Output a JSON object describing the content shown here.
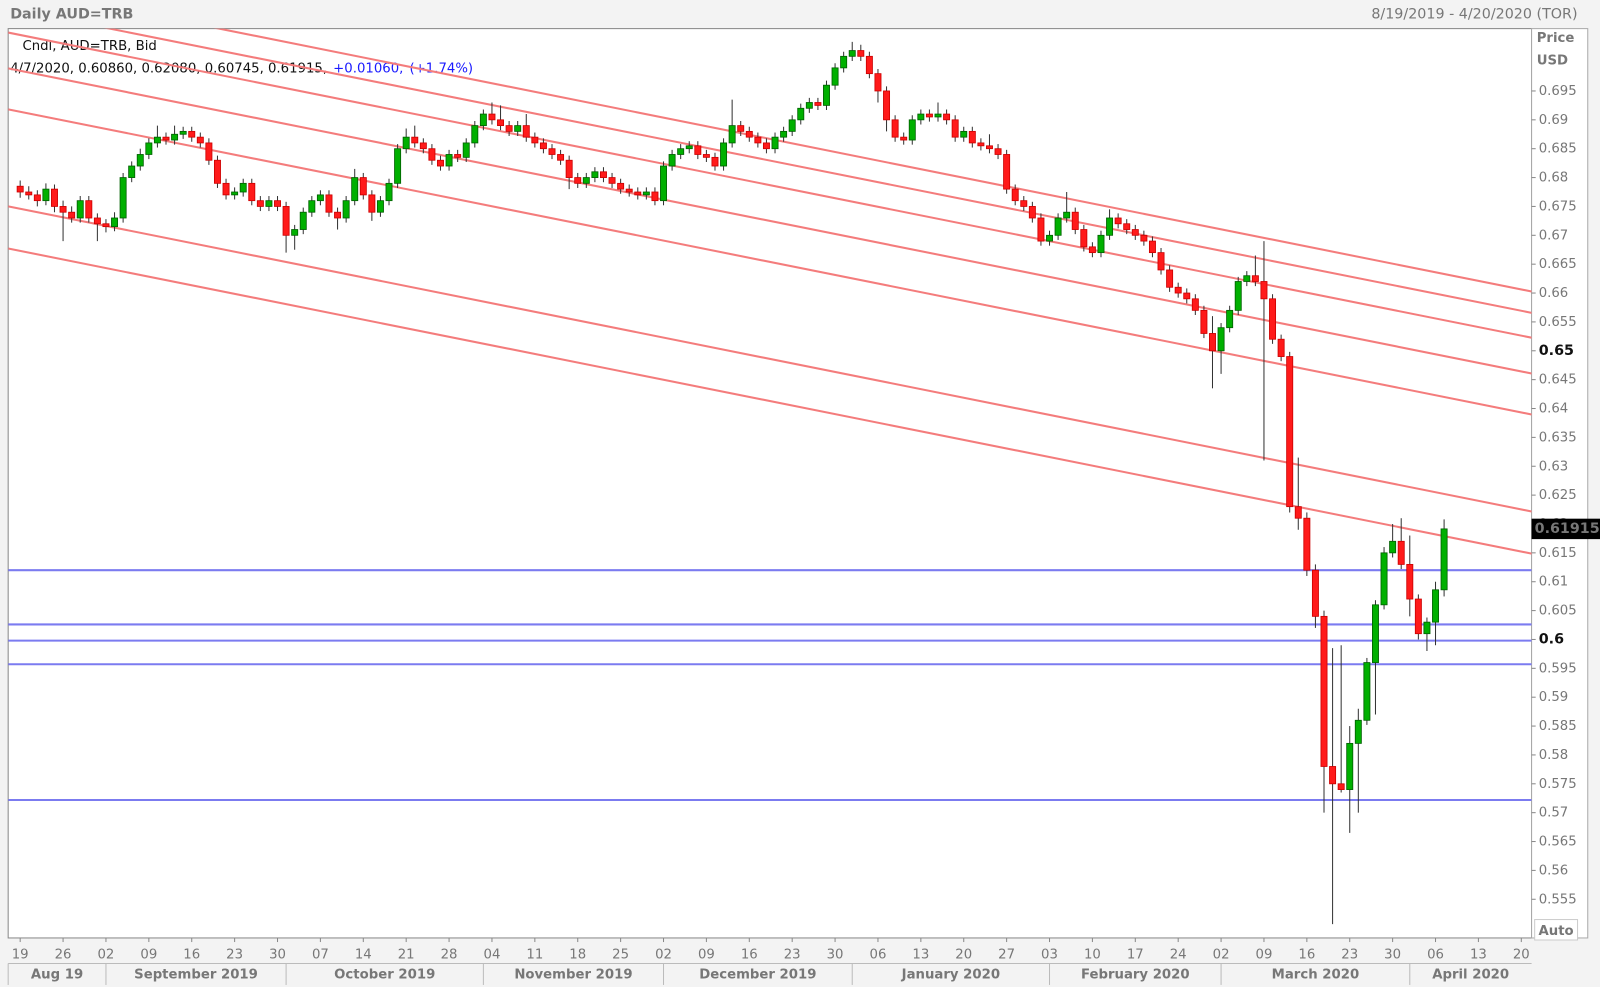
{
  "chart_data": {
    "type": "candlestick",
    "title": "Daily AUD=TRB",
    "date_range": "8/19/2019 - 4/20/2020 (TOR)",
    "legend": {
      "name": "Cndl, AUD=TRB, Bid",
      "ohlc_text": "4/7/2020, 0.60860, 0.62080, 0.60745, 0.61915,",
      "change": "+0.01060,",
      "change_pct": "(+1.74%)"
    },
    "y_axis_label": [
      "Price",
      "USD"
    ],
    "auto_label": "Auto",
    "last_label": "0.61915",
    "up_color": "#00b000",
    "down_color": "#ff1a1a",
    "channel_color": "#f47c7c",
    "level_color": "#7b7bf0",
    "xlim": [
      -1.4,
      176.2
    ],
    "ylim": [
      0.5483,
      0.7058
    ],
    "yticks": [
      0.555,
      0.56,
      0.565,
      0.57,
      0.575,
      0.58,
      0.585,
      0.59,
      0.595,
      0.6,
      0.605,
      0.61,
      0.615,
      0.62,
      0.625,
      0.63,
      0.635,
      0.64,
      0.645,
      0.65,
      0.655,
      0.66,
      0.665,
      0.67,
      0.675,
      0.68,
      0.685,
      0.69,
      0.695
    ],
    "major_yticks": [
      0.6,
      0.65
    ],
    "xticks": [
      {
        "value": 0,
        "label": "19"
      },
      {
        "value": 5,
        "label": "26"
      },
      {
        "value": 10,
        "label": "02"
      },
      {
        "value": 15,
        "label": "09"
      },
      {
        "value": 20,
        "label": "16"
      },
      {
        "value": 25,
        "label": "23"
      },
      {
        "value": 30,
        "label": "30"
      },
      {
        "value": 35,
        "label": "07"
      },
      {
        "value": 40,
        "label": "14"
      },
      {
        "value": 45,
        "label": "21"
      },
      {
        "value": 50,
        "label": "28"
      },
      {
        "value": 55,
        "label": "04"
      },
      {
        "value": 60,
        "label": "11"
      },
      {
        "value": 65,
        "label": "18"
      },
      {
        "value": 70,
        "label": "25"
      },
      {
        "value": 75,
        "label": "02"
      },
      {
        "value": 80,
        "label": "09"
      },
      {
        "value": 85,
        "label": "16"
      },
      {
        "value": 90,
        "label": "23"
      },
      {
        "value": 95,
        "label": "30"
      },
      {
        "value": 100,
        "label": "06"
      },
      {
        "value": 105,
        "label": "13"
      },
      {
        "value": 110,
        "label": "20"
      },
      {
        "value": 115,
        "label": "27"
      },
      {
        "value": 120,
        "label": "03"
      },
      {
        "value": 125,
        "label": "10"
      },
      {
        "value": 130,
        "label": "17"
      },
      {
        "value": 135,
        "label": "24"
      },
      {
        "value": 140,
        "label": "02"
      },
      {
        "value": 145,
        "label": "09"
      },
      {
        "value": 150,
        "label": "16"
      },
      {
        "value": 155,
        "label": "23"
      },
      {
        "value": 160,
        "label": "30"
      },
      {
        "value": 165,
        "label": "06"
      },
      {
        "value": 170,
        "label": "13"
      },
      {
        "value": 175,
        "label": "20"
      }
    ],
    "months": [
      {
        "label": "Aug 19",
        "start": -1.4
      },
      {
        "label": "September 2019",
        "start": 10
      },
      {
        "label": "October 2019",
        "start": 31
      },
      {
        "label": "November 2019",
        "start": 54
      },
      {
        "label": "December 2019",
        "start": 75
      },
      {
        "label": "January 2020",
        "start": 97
      },
      {
        "label": "February 2020",
        "start": 120
      },
      {
        "label": "March 2020",
        "start": 140
      },
      {
        "label": "April 2020",
        "start": 162
      }
    ],
    "channel_lines": [
      {
        "x": [
          0,
          165
        ],
        "values": [
          0.6673,
          0.6182
        ]
      },
      {
        "x": [
          0,
          165
        ],
        "values": [
          0.6746,
          0.6255
        ]
      },
      {
        "x": [
          0,
          165
        ],
        "values": [
          0.6914,
          0.6423
        ]
      },
      {
        "x": [
          0,
          165
        ],
        "values": [
          0.6985,
          0.6494
        ]
      },
      {
        "x": [
          0,
          165
        ],
        "values": [
          0.7047,
          0.6556
        ]
      },
      {
        "x": [
          0,
          165
        ],
        "values": [
          0.7089,
          0.6599
        ]
      },
      {
        "x": [
          0,
          165
        ],
        "values": [
          0.7127,
          0.6636
        ]
      }
    ],
    "levels": [
      0.612,
      0.6026,
      0.5998,
      0.5957,
      0.5722
    ],
    "ohlc": [
      [
        0.6785,
        0.6795,
        0.6765,
        0.6775
      ],
      [
        0.6775,
        0.6785,
        0.6762,
        0.677
      ],
      [
        0.677,
        0.6778,
        0.675,
        0.676
      ],
      [
        0.676,
        0.679,
        0.6752,
        0.678
      ],
      [
        0.678,
        0.6788,
        0.674,
        0.675
      ],
      [
        0.675,
        0.676,
        0.669,
        0.674
      ],
      [
        0.674,
        0.675,
        0.6722,
        0.673
      ],
      [
        0.673,
        0.6768,
        0.6722,
        0.676
      ],
      [
        0.676,
        0.6768,
        0.6722,
        0.673
      ],
      [
        0.673,
        0.6738,
        0.669,
        0.672
      ],
      [
        0.672,
        0.6728,
        0.6705,
        0.6715
      ],
      [
        0.6715,
        0.674,
        0.6707,
        0.673
      ],
      [
        0.673,
        0.6808,
        0.6722,
        0.68
      ],
      [
        0.68,
        0.6828,
        0.6792,
        0.682
      ],
      [
        0.682,
        0.685,
        0.6812,
        0.684
      ],
      [
        0.684,
        0.6868,
        0.6832,
        0.686
      ],
      [
        0.686,
        0.689,
        0.6852,
        0.687
      ],
      [
        0.687,
        0.6878,
        0.6857,
        0.6865
      ],
      [
        0.6865,
        0.689,
        0.6857,
        0.6875
      ],
      [
        0.6875,
        0.6888,
        0.6867,
        0.688
      ],
      [
        0.688,
        0.6888,
        0.6862,
        0.687
      ],
      [
        0.687,
        0.6878,
        0.6852,
        0.686
      ],
      [
        0.686,
        0.6868,
        0.6822,
        0.683
      ],
      [
        0.683,
        0.6838,
        0.6782,
        0.679
      ],
      [
        0.679,
        0.6798,
        0.6762,
        0.677
      ],
      [
        0.677,
        0.6783,
        0.6762,
        0.6775
      ],
      [
        0.6775,
        0.6798,
        0.6767,
        0.679
      ],
      [
        0.679,
        0.6798,
        0.6752,
        0.676
      ],
      [
        0.676,
        0.6768,
        0.6742,
        0.675
      ],
      [
        0.675,
        0.6768,
        0.6742,
        0.676
      ],
      [
        0.676,
        0.6768,
        0.6742,
        0.675
      ],
      [
        0.675,
        0.6758,
        0.667,
        0.67
      ],
      [
        0.67,
        0.6718,
        0.6675,
        0.671
      ],
      [
        0.671,
        0.6748,
        0.6702,
        0.674
      ],
      [
        0.674,
        0.6768,
        0.6732,
        0.676
      ],
      [
        0.676,
        0.6778,
        0.6752,
        0.677
      ],
      [
        0.677,
        0.6778,
        0.6732,
        0.674
      ],
      [
        0.674,
        0.6748,
        0.671,
        0.673
      ],
      [
        0.673,
        0.6768,
        0.6722,
        0.676
      ],
      [
        0.676,
        0.6815,
        0.6752,
        0.68
      ],
      [
        0.68,
        0.6808,
        0.6762,
        0.677
      ],
      [
        0.677,
        0.6778,
        0.6725,
        0.674
      ],
      [
        0.674,
        0.6768,
        0.6732,
        0.676
      ],
      [
        0.676,
        0.6798,
        0.6752,
        0.679
      ],
      [
        0.679,
        0.6858,
        0.6782,
        0.685
      ],
      [
        0.685,
        0.6885,
        0.6842,
        0.687
      ],
      [
        0.687,
        0.689,
        0.6852,
        0.686
      ],
      [
        0.686,
        0.6868,
        0.6842,
        0.685
      ],
      [
        0.685,
        0.6858,
        0.6822,
        0.683
      ],
      [
        0.683,
        0.6838,
        0.6812,
        0.682
      ],
      [
        0.682,
        0.6848,
        0.6812,
        0.684
      ],
      [
        0.684,
        0.6848,
        0.6827,
        0.6835
      ],
      [
        0.6835,
        0.6868,
        0.6827,
        0.686
      ],
      [
        0.686,
        0.6898,
        0.6852,
        0.689
      ],
      [
        0.689,
        0.6918,
        0.6882,
        0.691
      ],
      [
        0.691,
        0.693,
        0.6892,
        0.69
      ],
      [
        0.69,
        0.6925,
        0.6882,
        0.689
      ],
      [
        0.689,
        0.6898,
        0.6872,
        0.688
      ],
      [
        0.688,
        0.6898,
        0.6872,
        0.689
      ],
      [
        0.689,
        0.691,
        0.6862,
        0.687
      ],
      [
        0.687,
        0.6878,
        0.6852,
        0.686
      ],
      [
        0.686,
        0.6868,
        0.6842,
        0.685
      ],
      [
        0.685,
        0.6858,
        0.6832,
        0.684
      ],
      [
        0.684,
        0.6848,
        0.6822,
        0.683
      ],
      [
        0.683,
        0.6838,
        0.678,
        0.68
      ],
      [
        0.68,
        0.6808,
        0.6782,
        0.679
      ],
      [
        0.679,
        0.6808,
        0.6782,
        0.68
      ],
      [
        0.68,
        0.6818,
        0.6792,
        0.681
      ],
      [
        0.681,
        0.6818,
        0.6792,
        0.68
      ],
      [
        0.68,
        0.6808,
        0.6782,
        0.679
      ],
      [
        0.679,
        0.6798,
        0.6772,
        0.678
      ],
      [
        0.678,
        0.6788,
        0.6767,
        0.6775
      ],
      [
        0.6775,
        0.6783,
        0.6762,
        0.677
      ],
      [
        0.677,
        0.6783,
        0.6762,
        0.6775
      ],
      [
        0.6775,
        0.6783,
        0.6752,
        0.676
      ],
      [
        0.676,
        0.6828,
        0.6752,
        0.682
      ],
      [
        0.682,
        0.6848,
        0.6812,
        0.684
      ],
      [
        0.684,
        0.6858,
        0.6832,
        0.685
      ],
      [
        0.685,
        0.6863,
        0.6842,
        0.6855
      ],
      [
        0.6855,
        0.6863,
        0.6832,
        0.684
      ],
      [
        0.684,
        0.6848,
        0.6827,
        0.6835
      ],
      [
        0.6835,
        0.6843,
        0.6812,
        0.682
      ],
      [
        0.682,
        0.6868,
        0.6812,
        0.686
      ],
      [
        0.686,
        0.6935,
        0.6852,
        0.689
      ],
      [
        0.689,
        0.6898,
        0.6872,
        0.688
      ],
      [
        0.688,
        0.6888,
        0.6862,
        0.687
      ],
      [
        0.687,
        0.6878,
        0.6852,
        0.686
      ],
      [
        0.686,
        0.6868,
        0.6842,
        0.685
      ],
      [
        0.685,
        0.6878,
        0.6842,
        0.687
      ],
      [
        0.687,
        0.6888,
        0.6862,
        0.688
      ],
      [
        0.688,
        0.6908,
        0.6872,
        0.69
      ],
      [
        0.69,
        0.6928,
        0.6892,
        0.692
      ],
      [
        0.692,
        0.6938,
        0.6912,
        0.693
      ],
      [
        0.693,
        0.6938,
        0.6917,
        0.6925
      ],
      [
        0.6925,
        0.6968,
        0.6917,
        0.696
      ],
      [
        0.696,
        0.6998,
        0.6952,
        0.699
      ],
      [
        0.699,
        0.7018,
        0.6982,
        0.701
      ],
      [
        0.701,
        0.7035,
        0.7002,
        0.702
      ],
      [
        0.702,
        0.703,
        0.7002,
        0.701
      ],
      [
        0.701,
        0.7018,
        0.6972,
        0.698
      ],
      [
        0.698,
        0.6988,
        0.693,
        0.695
      ],
      [
        0.695,
        0.6958,
        0.688,
        0.69
      ],
      [
        0.69,
        0.6908,
        0.6862,
        0.687
      ],
      [
        0.687,
        0.6878,
        0.6857,
        0.6865
      ],
      [
        0.6865,
        0.6908,
        0.6857,
        0.69
      ],
      [
        0.69,
        0.6918,
        0.6892,
        0.691
      ],
      [
        0.691,
        0.6918,
        0.6897,
        0.6905
      ],
      [
        0.6905,
        0.693,
        0.6897,
        0.691
      ],
      [
        0.691,
        0.6918,
        0.6892,
        0.69
      ],
      [
        0.69,
        0.6908,
        0.6862,
        0.687
      ],
      [
        0.687,
        0.6888,
        0.6862,
        0.688
      ],
      [
        0.688,
        0.6888,
        0.6852,
        0.686
      ],
      [
        0.686,
        0.6868,
        0.6847,
        0.6855
      ],
      [
        0.6855,
        0.6875,
        0.6842,
        0.685
      ],
      [
        0.685,
        0.6858,
        0.6832,
        0.684
      ],
      [
        0.684,
        0.6848,
        0.6772,
        0.678
      ],
      [
        0.678,
        0.6788,
        0.6752,
        0.676
      ],
      [
        0.676,
        0.6768,
        0.6742,
        0.675
      ],
      [
        0.675,
        0.6758,
        0.6722,
        0.673
      ],
      [
        0.673,
        0.6738,
        0.6682,
        0.669
      ],
      [
        0.669,
        0.6708,
        0.6682,
        0.67
      ],
      [
        0.67,
        0.6738,
        0.6692,
        0.673
      ],
      [
        0.673,
        0.6775,
        0.6722,
        0.674
      ],
      [
        0.674,
        0.6748,
        0.6702,
        0.671
      ],
      [
        0.671,
        0.6718,
        0.6672,
        0.668
      ],
      [
        0.668,
        0.6688,
        0.6662,
        0.667
      ],
      [
        0.667,
        0.6708,
        0.6662,
        0.67
      ],
      [
        0.67,
        0.6745,
        0.6692,
        0.673
      ],
      [
        0.673,
        0.6738,
        0.6712,
        0.672
      ],
      [
        0.672,
        0.6728,
        0.6702,
        0.671
      ],
      [
        0.671,
        0.6718,
        0.6692,
        0.67
      ],
      [
        0.67,
        0.6708,
        0.6682,
        0.669
      ],
      [
        0.669,
        0.6698,
        0.6662,
        0.667
      ],
      [
        0.667,
        0.6678,
        0.6632,
        0.664
      ],
      [
        0.664,
        0.6648,
        0.6602,
        0.661
      ],
      [
        0.661,
        0.6618,
        0.6592,
        0.66
      ],
      [
        0.66,
        0.6608,
        0.6582,
        0.659
      ],
      [
        0.659,
        0.6598,
        0.6562,
        0.657
      ],
      [
        0.657,
        0.6578,
        0.6522,
        0.653
      ],
      [
        0.653,
        0.656,
        0.6435,
        0.65
      ],
      [
        0.65,
        0.6548,
        0.646,
        0.654
      ],
      [
        0.654,
        0.6578,
        0.6532,
        0.657
      ],
      [
        0.657,
        0.6628,
        0.6562,
        0.662
      ],
      [
        0.662,
        0.6638,
        0.6612,
        0.663
      ],
      [
        0.663,
        0.6665,
        0.6612,
        0.662
      ],
      [
        0.662,
        0.669,
        0.631,
        0.659
      ],
      [
        0.659,
        0.6598,
        0.6512,
        0.652
      ],
      [
        0.652,
        0.6528,
        0.6482,
        0.649
      ],
      [
        0.649,
        0.6498,
        0.622,
        0.623
      ],
      [
        0.623,
        0.6315,
        0.619,
        0.621
      ],
      [
        0.621,
        0.622,
        0.611,
        0.612
      ],
      [
        0.612,
        0.613,
        0.602,
        0.604
      ],
      [
        0.604,
        0.605,
        0.57,
        0.578
      ],
      [
        0.578,
        0.5985,
        0.5507,
        0.575
      ],
      [
        0.575,
        0.599,
        0.5735,
        0.574
      ],
      [
        0.574,
        0.585,
        0.5665,
        0.582
      ],
      [
        0.582,
        0.588,
        0.57,
        0.586
      ],
      [
        0.586,
        0.5968,
        0.5852,
        0.596
      ],
      [
        0.596,
        0.6068,
        0.587,
        0.606
      ],
      [
        0.606,
        0.616,
        0.6052,
        0.615
      ],
      [
        0.615,
        0.62,
        0.6142,
        0.617
      ],
      [
        0.617,
        0.621,
        0.6122,
        0.613
      ],
      [
        0.613,
        0.618,
        0.604,
        0.607
      ],
      [
        0.607,
        0.6078,
        0.6,
        0.601
      ],
      [
        0.601,
        0.6038,
        0.598,
        0.603
      ],
      [
        0.603,
        0.61,
        0.599,
        0.6086
      ],
      [
        0.6086,
        0.6208,
        0.60745,
        0.61915
      ]
    ]
  }
}
